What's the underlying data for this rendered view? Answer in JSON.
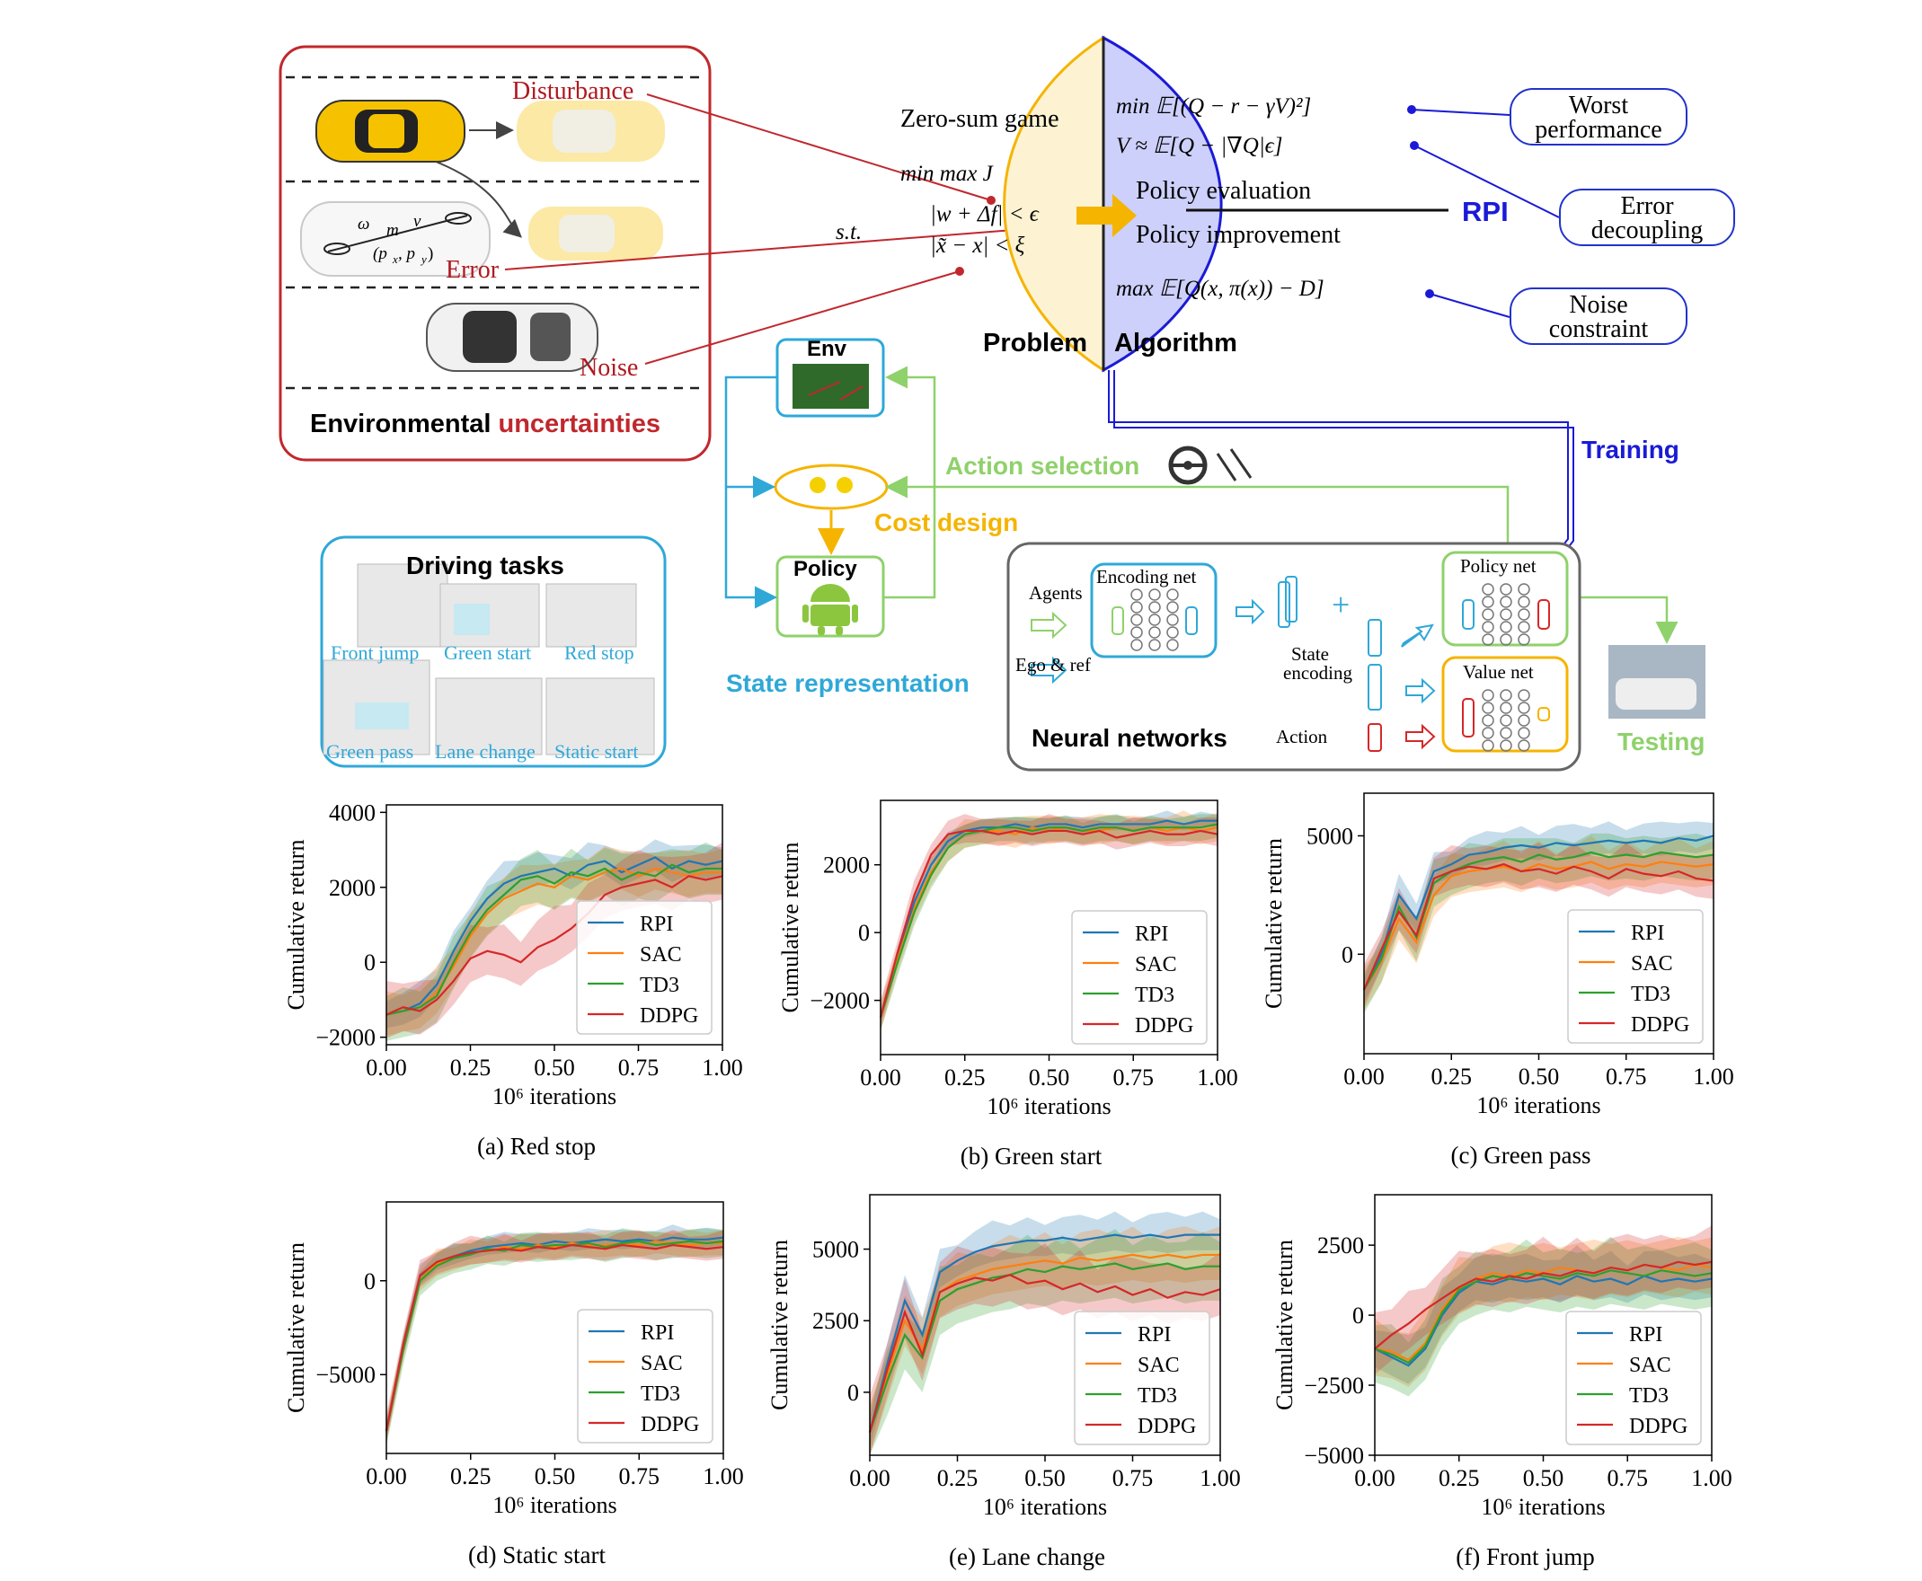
{
  "env_panel": {
    "title_black": "Environmental",
    "title_red": "uncertainties",
    "disturbance": "Disturbance",
    "error": "Error",
    "noise": "Noise"
  },
  "problem": {
    "zero_sum": "Zero-sum game",
    "minmax": "min max J",
    "minmax_sub": "u",
    "st": "s.t.",
    "cons1": "|w + Δf| < ϵ",
    "cons2": "|x̃ − x| < ξ",
    "label": "Problem"
  },
  "algorithm": {
    "eq1": "min 𝔼[(Q − r − γV)²]",
    "eq2": "V ≈ 𝔼[Q − |∇Q|ϵ]",
    "policy_eval": "Policy evaluation",
    "policy_impr": "Policy improvement",
    "eq3": "max 𝔼[Q(x, π(x)) − D]",
    "label": "Algorithm",
    "rpi": "RPI"
  },
  "callouts": {
    "worst1": "Worst",
    "worst2": "performance",
    "error1": "Error",
    "error2": "decoupling",
    "noise1": "Noise",
    "noise2": "constraint"
  },
  "loop": {
    "env": "Env",
    "policy": "Policy",
    "action_selection": "Action selection",
    "cost_design": "Cost design",
    "state_representation": "State representation",
    "training": "Training",
    "testing": "Testing"
  },
  "tasks": {
    "title": "Driving tasks",
    "items": [
      "Front jump",
      "Green start",
      "Red stop",
      "Green pass",
      "Lane change",
      "Static start"
    ]
  },
  "nn": {
    "agents": "Agents",
    "ego_ref": "Ego & ref",
    "encoding_net": "Encoding net",
    "state_encoding1": "State",
    "state_encoding2": "encoding",
    "action": "Action",
    "policy_net": "Policy net",
    "value_net": "Value net",
    "title": "Neural networks"
  },
  "colors": {
    "rpi": "#1f77b4",
    "sac": "#ff7f0e",
    "td3": "#2ca02c",
    "ddpg": "#d62728"
  },
  "chart_data": [
    {
      "type": "line",
      "caption": "(a)  Red stop",
      "xlabel": "10⁶ iterations",
      "ylabel": "Cumulative return",
      "xlim": [
        0,
        1
      ],
      "ylim": [
        -2200,
        4200
      ],
      "xticks": [
        0,
        0.25,
        0.5,
        0.75,
        1
      ],
      "yticks": [
        -2000,
        0,
        2000,
        4000
      ],
      "legend": "bottom-right",
      "x": [
        0,
        0.05,
        0.1,
        0.15,
        0.2,
        0.25,
        0.3,
        0.35,
        0.4,
        0.45,
        0.5,
        0.55,
        0.6,
        0.65,
        0.7,
        0.75,
        0.8,
        0.85,
        0.9,
        0.95,
        1.0
      ],
      "series": [
        {
          "name": "RPI",
          "values": [
            -1400,
            -1300,
            -1100,
            -600,
            300,
            1100,
            1700,
            2100,
            2300,
            2400,
            2500,
            2300,
            2600,
            2700,
            2400,
            2600,
            2800,
            2500,
            2700,
            2600,
            2700
          ],
          "band": 600
        },
        {
          "name": "SAC",
          "values": [
            -1400,
            -1300,
            -1200,
            -800,
            -100,
            700,
            1300,
            1700,
            1900,
            2100,
            2000,
            2300,
            2200,
            2400,
            2500,
            2300,
            2500,
            2400,
            2300,
            2400,
            2400
          ],
          "band": 700
        },
        {
          "name": "TD3",
          "values": [
            -1400,
            -1300,
            -1200,
            -900,
            0,
            800,
            1400,
            1800,
            2200,
            2300,
            2100,
            2400,
            2300,
            2500,
            2200,
            2400,
            2300,
            2600,
            2400,
            2500,
            2500
          ],
          "band": 700
        },
        {
          "name": "DDPG",
          "values": [
            -1400,
            -1200,
            -1300,
            -1000,
            -500,
            100,
            300,
            200,
            0,
            400,
            600,
            900,
            1300,
            1800,
            2000,
            2100,
            2200,
            2000,
            2300,
            2200,
            2300
          ],
          "band": 900
        }
      ]
    },
    {
      "type": "line",
      "caption": "(b)  Green start",
      "xlabel": "10⁶ iterations",
      "ylabel": "Cumulative return",
      "xlim": [
        0,
        1
      ],
      "ylim": [
        -3600,
        3900
      ],
      "xticks": [
        0,
        0.25,
        0.5,
        0.75,
        1
      ],
      "yticks": [
        -2000,
        0,
        2000
      ],
      "legend": "bottom-right",
      "x": [
        0,
        0.05,
        0.1,
        0.15,
        0.2,
        0.25,
        0.3,
        0.35,
        0.4,
        0.45,
        0.5,
        0.55,
        0.6,
        0.65,
        0.7,
        0.75,
        0.8,
        0.85,
        0.9,
        0.95,
        1.0
      ],
      "series": [
        {
          "name": "RPI",
          "values": [
            -2500,
            -700,
            900,
            2000,
            2700,
            3000,
            3100,
            3100,
            3200,
            3100,
            3200,
            3200,
            3100,
            3200,
            3200,
            3200,
            3200,
            3300,
            3200,
            3300,
            3300
          ],
          "band": 300
        },
        {
          "name": "SAC",
          "values": [
            -2500,
            -800,
            700,
            1800,
            2500,
            2900,
            3000,
            3000,
            2900,
            3100,
            3000,
            3100,
            3000,
            3000,
            3100,
            3000,
            3100,
            3000,
            3100,
            3000,
            3100
          ],
          "band": 500
        },
        {
          "name": "TD3",
          "values": [
            -2500,
            -900,
            600,
            1700,
            2500,
            2900,
            3000,
            3100,
            3100,
            3000,
            3100,
            3100,
            3000,
            3100,
            3100,
            3000,
            3100,
            3100,
            3100,
            3100,
            3200
          ],
          "band": 400
        },
        {
          "name": "DDPG",
          "values": [
            -2500,
            -600,
            1100,
            2300,
            2900,
            3000,
            3000,
            2900,
            3000,
            2900,
            3000,
            3000,
            2900,
            3000,
            2800,
            2900,
            3000,
            2900,
            2900,
            3000,
            2900
          ],
          "band": 500
        }
      ]
    },
    {
      "type": "line",
      "caption": "(c)  Green pass",
      "xlabel": "10⁶ iterations",
      "ylabel": "Cumulative return",
      "xlim": [
        0,
        1
      ],
      "ylim": [
        -4200,
        6800
      ],
      "xticks": [
        0,
        0.25,
        0.5,
        0.75,
        1
      ],
      "yticks": [
        0,
        5000
      ],
      "legend": "bottom-right",
      "x": [
        0,
        0.05,
        0.1,
        0.15,
        0.2,
        0.25,
        0.3,
        0.35,
        0.4,
        0.45,
        0.5,
        0.55,
        0.6,
        0.65,
        0.7,
        0.75,
        0.8,
        0.85,
        0.9,
        0.95,
        1.0
      ],
      "series": [
        {
          "name": "RPI",
          "values": [
            -1500,
            0,
            2500,
            1500,
            3500,
            3800,
            4200,
            4300,
            4500,
            4600,
            4500,
            4700,
            4600,
            4700,
            4800,
            4700,
            4800,
            4700,
            4900,
            4800,
            5000
          ],
          "band": 900
        },
        {
          "name": "SAC",
          "values": [
            -1500,
            -300,
            1500,
            500,
            2500,
            3300,
            3500,
            3600,
            3700,
            3500,
            3800,
            3600,
            3700,
            3900,
            3600,
            3800,
            3700,
            3900,
            3800,
            3700,
            3800
          ],
          "band": 1100
        },
        {
          "name": "TD3",
          "values": [
            -1500,
            -200,
            2000,
            700,
            3000,
            3500,
            3800,
            4000,
            4100,
            3900,
            4200,
            4000,
            4100,
            4300,
            4100,
            4200,
            4100,
            4300,
            4200,
            4100,
            4200
          ],
          "band": 1000
        },
        {
          "name": "DDPG",
          "values": [
            -1500,
            200,
            1800,
            800,
            3200,
            3500,
            3700,
            3600,
            3800,
            3500,
            3600,
            3400,
            3700,
            3500,
            3200,
            3600,
            3400,
            3300,
            3500,
            3200,
            3100
          ],
          "band": 1100
        }
      ]
    },
    {
      "type": "line",
      "caption": "(d)  Static start",
      "xlabel": "10⁶ iterations",
      "ylabel": "Cumulative return",
      "xlim": [
        0,
        1
      ],
      "ylim": [
        -9200,
        4200
      ],
      "xticks": [
        0,
        0.25,
        0.5,
        0.75,
        1
      ],
      "yticks": [
        -5000,
        0
      ],
      "legend": "bottom-right",
      "x": [
        0,
        0.05,
        0.1,
        0.15,
        0.2,
        0.25,
        0.3,
        0.35,
        0.4,
        0.45,
        0.5,
        0.55,
        0.6,
        0.65,
        0.7,
        0.75,
        0.8,
        0.85,
        0.9,
        0.95,
        1.0
      ],
      "series": [
        {
          "name": "RPI",
          "values": [
            -8000,
            -3500,
            200,
            1000,
            1300,
            1600,
            1800,
            1900,
            2000,
            1900,
            2100,
            2000,
            2100,
            2200,
            2100,
            2200,
            2100,
            2300,
            2200,
            2200,
            2300
          ],
          "band": 700
        },
        {
          "name": "SAC",
          "values": [
            -8000,
            -3600,
            100,
            900,
            1200,
            1500,
            1600,
            1800,
            1700,
            1900,
            1800,
            2000,
            1900,
            1900,
            2000,
            1900,
            2100,
            2000,
            1900,
            2000,
            2000
          ],
          "band": 800
        },
        {
          "name": "TD3",
          "values": [
            -8000,
            -3700,
            0,
            800,
            1200,
            1400,
            1700,
            1600,
            1900,
            1800,
            1900,
            1900,
            2000,
            1800,
            2000,
            2100,
            1900,
            2000,
            2100,
            2000,
            2100
          ],
          "band": 800
        },
        {
          "name": "DDPG",
          "values": [
            -8000,
            -3400,
            300,
            1000,
            1300,
            1500,
            1600,
            1700,
            1600,
            1800,
            1700,
            1900,
            1800,
            1700,
            1900,
            1800,
            1700,
            1900,
            1800,
            1700,
            1800
          ],
          "band": 900
        }
      ]
    },
    {
      "type": "line",
      "caption": "(e)  Lane change",
      "xlabel": "10⁶ iterations",
      "ylabel": "Cumulative return",
      "xlim": [
        0,
        1
      ],
      "ylim": [
        -2200,
        6900
      ],
      "xticks": [
        0,
        0.25,
        0.5,
        0.75,
        1
      ],
      "yticks": [
        0,
        2500,
        5000
      ],
      "legend": "bottom-right",
      "x": [
        0,
        0.05,
        0.1,
        0.15,
        0.2,
        0.25,
        0.3,
        0.35,
        0.4,
        0.45,
        0.5,
        0.55,
        0.6,
        0.65,
        0.7,
        0.75,
        0.8,
        0.85,
        0.9,
        0.95,
        1.0
      ],
      "series": [
        {
          "name": "RPI",
          "values": [
            -1400,
            1000,
            3200,
            2000,
            4200,
            4600,
            4900,
            5100,
            5200,
            5300,
            5300,
            5400,
            5300,
            5400,
            5500,
            5400,
            5500,
            5400,
            5500,
            5500,
            5500
          ],
          "band": 900
        },
        {
          "name": "SAC",
          "values": [
            -1400,
            600,
            2500,
            1500,
            3500,
            3900,
            4100,
            4300,
            4400,
            4500,
            4600,
            4500,
            4700,
            4600,
            4700,
            4800,
            4700,
            4800,
            4700,
            4800,
            4800
          ],
          "band": 1100
        },
        {
          "name": "TD3",
          "values": [
            -1400,
            400,
            2000,
            1200,
            3200,
            3600,
            3800,
            4000,
            4100,
            4300,
            4200,
            4400,
            4300,
            4400,
            4500,
            4300,
            4400,
            4500,
            4300,
            4400,
            4400
          ],
          "band": 1200
        },
        {
          "name": "DDPG",
          "values": [
            -1400,
            800,
            2800,
            1300,
            3500,
            3800,
            4000,
            3900,
            4100,
            3800,
            3900,
            3600,
            3800,
            3500,
            3700,
            3400,
            3600,
            3300,
            3500,
            3400,
            3600
          ],
          "band": 1300
        }
      ]
    },
    {
      "type": "line",
      "caption": "(f)  Front jump",
      "xlabel": "10⁶ iterations",
      "ylabel": "Cumulative return",
      "xlim": [
        0,
        1
      ],
      "ylim": [
        -5000,
        4300
      ],
      "xticks": [
        0,
        0.25,
        0.5,
        0.75,
        1
      ],
      "yticks": [
        -5000,
        -2500,
        0,
        2500
      ],
      "legend": "bottom-right",
      "x": [
        0,
        0.05,
        0.1,
        0.15,
        0.2,
        0.25,
        0.3,
        0.35,
        0.4,
        0.45,
        0.5,
        0.55,
        0.6,
        0.65,
        0.7,
        0.75,
        0.8,
        0.85,
        0.9,
        0.95,
        1.0
      ],
      "series": [
        {
          "name": "RPI",
          "values": [
            -1200,
            -1500,
            -1800,
            -1200,
            0,
            800,
            1200,
            1100,
            1300,
            1200,
            1300,
            1100,
            1400,
            1200,
            1300,
            1100,
            1400,
            1200,
            1300,
            1200,
            1300
          ],
          "band": 1100
        },
        {
          "name": "SAC",
          "values": [
            -1200,
            -1300,
            -1600,
            -1000,
            200,
            1000,
            1300,
            1500,
            1400,
            1600,
            1500,
            1700,
            1600,
            1500,
            1700,
            1600,
            1800,
            1700,
            1600,
            1800,
            1700
          ],
          "band": 1200
        },
        {
          "name": "TD3",
          "values": [
            -1200,
            -1400,
            -1700,
            -1100,
            100,
            900,
            1200,
            1400,
            1300,
            1500,
            1400,
            1300,
            1500,
            1400,
            1600,
            1500,
            1400,
            1600,
            1500,
            1400,
            1500
          ],
          "band": 1200
        },
        {
          "name": "DDPG",
          "values": [
            -1200,
            -700,
            -300,
            200,
            600,
            1000,
            1300,
            1200,
            1400,
            1300,
            1500,
            1400,
            1600,
            1500,
            1700,
            1600,
            1800,
            1700,
            1900,
            1800,
            1900
          ],
          "band": 1300
        }
      ]
    }
  ]
}
